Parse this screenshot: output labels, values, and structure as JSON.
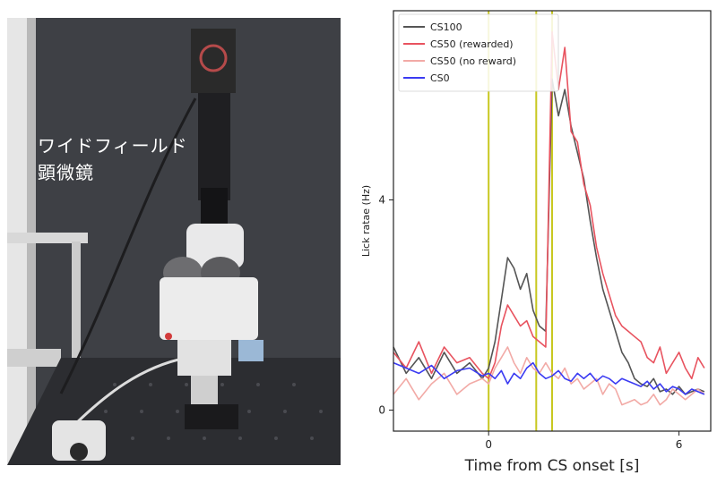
{
  "photo": {
    "caption": "ワイドフィールド\n顕微鏡"
  },
  "colors": {
    "CS100": "#555555",
    "CS50_rewarded": "#e8535f",
    "CS50_no_reward": "#f2aaa6",
    "CS0": "#3b3bf2",
    "event_line": "#c8c820"
  },
  "chart_data": {
    "type": "line",
    "xlabel": "Time from CS onset [s]",
    "ylabel": "Lick ratae (Hz)",
    "xlim": [
      -3,
      7
    ],
    "ylim": [
      -0.4,
      7.6
    ],
    "xticks": [
      0,
      6
    ],
    "yticks": [
      0,
      4
    ],
    "grid": false,
    "legend_position": "top-left",
    "vlines": [
      0,
      1.5,
      2
    ],
    "series": [
      {
        "name": "CS100",
        "color": "#555555",
        "x": [
          -3,
          -2.6,
          -2.2,
          -1.8,
          -1.4,
          -1.0,
          -0.6,
          -0.2,
          0,
          0.2,
          0.4,
          0.6,
          0.8,
          1.0,
          1.2,
          1.4,
          1.6,
          1.8,
          2.0,
          2.2,
          2.4,
          2.6,
          2.8,
          3.0,
          3.2,
          3.4,
          3.6,
          3.8,
          4.0,
          4.2,
          4.4,
          4.6,
          4.8,
          5.0,
          5.2,
          5.4,
          5.6,
          5.8,
          6.0,
          6.2,
          6.4,
          6.6,
          6.8
        ],
        "values": [
          1.2,
          0.7,
          1.0,
          0.6,
          1.1,
          0.7,
          0.9,
          0.6,
          0.8,
          1.3,
          2.1,
          2.9,
          2.7,
          2.3,
          2.6,
          1.9,
          1.6,
          1.5,
          6.3,
          5.6,
          6.1,
          5.4,
          4.9,
          4.4,
          3.6,
          2.9,
          2.3,
          1.9,
          1.5,
          1.1,
          0.9,
          0.6,
          0.5,
          0.45,
          0.6,
          0.35,
          0.4,
          0.3,
          0.45,
          0.3,
          0.35,
          0.4,
          0.35
        ]
      },
      {
        "name": "CS50 (rewarded)",
        "color": "#e8535f",
        "x": [
          -3,
          -2.6,
          -2.2,
          -1.8,
          -1.4,
          -1.0,
          -0.6,
          -0.2,
          0,
          0.2,
          0.4,
          0.6,
          0.8,
          1.0,
          1.2,
          1.4,
          1.6,
          1.8,
          2.0,
          2.2,
          2.4,
          2.6,
          2.8,
          3.0,
          3.2,
          3.4,
          3.6,
          3.8,
          4.0,
          4.2,
          4.4,
          4.6,
          4.8,
          5.0,
          5.2,
          5.4,
          5.6,
          5.8,
          6.0,
          6.2,
          6.4,
          6.6,
          6.8
        ],
        "values": [
          1.1,
          0.8,
          1.3,
          0.7,
          1.2,
          0.9,
          1.0,
          0.7,
          0.6,
          0.9,
          1.6,
          2.0,
          1.8,
          1.6,
          1.7,
          1.4,
          1.3,
          1.2,
          7.2,
          6.1,
          6.9,
          5.3,
          5.1,
          4.3,
          3.9,
          3.1,
          2.6,
          2.2,
          1.8,
          1.6,
          1.5,
          1.4,
          1.3,
          1.0,
          0.9,
          1.2,
          0.7,
          0.9,
          1.1,
          0.8,
          0.6,
          1.0,
          0.8
        ]
      },
      {
        "name": "CS50 (no reward)",
        "color": "#f2aaa6",
        "x": [
          -3,
          -2.6,
          -2.2,
          -1.8,
          -1.4,
          -1.0,
          -0.6,
          -0.2,
          0,
          0.2,
          0.4,
          0.6,
          0.8,
          1.0,
          1.2,
          1.4,
          1.6,
          1.8,
          2.0,
          2.2,
          2.4,
          2.6,
          2.8,
          3.0,
          3.2,
          3.4,
          3.6,
          3.8,
          4.0,
          4.2,
          4.4,
          4.6,
          4.8,
          5.0,
          5.2,
          5.4,
          5.6,
          5.8,
          6.0,
          6.2,
          6.4,
          6.6,
          6.8
        ],
        "values": [
          0.3,
          0.6,
          0.2,
          0.5,
          0.7,
          0.3,
          0.5,
          0.6,
          0.5,
          0.8,
          1.0,
          1.2,
          0.9,
          0.7,
          1.0,
          0.8,
          0.7,
          0.9,
          0.7,
          0.6,
          0.8,
          0.5,
          0.6,
          0.4,
          0.5,
          0.6,
          0.3,
          0.5,
          0.4,
          0.1,
          0.15,
          0.2,
          0.1,
          0.15,
          0.3,
          0.1,
          0.2,
          0.4,
          0.3,
          0.2,
          0.3,
          0.4,
          0.3
        ]
      },
      {
        "name": "CS0",
        "color": "#3b3bf2",
        "x": [
          -3,
          -2.6,
          -2.2,
          -1.8,
          -1.4,
          -1.0,
          -0.6,
          -0.2,
          0,
          0.2,
          0.4,
          0.6,
          0.8,
          1.0,
          1.2,
          1.4,
          1.6,
          1.8,
          2.0,
          2.2,
          2.4,
          2.6,
          2.8,
          3.0,
          3.2,
          3.4,
          3.6,
          3.8,
          4.0,
          4.2,
          4.4,
          4.6,
          4.8,
          5.0,
          5.2,
          5.4,
          5.6,
          5.8,
          6.0,
          6.2,
          6.4,
          6.6,
          6.8
        ],
        "values": [
          0.9,
          0.8,
          0.7,
          0.85,
          0.6,
          0.75,
          0.8,
          0.65,
          0.7,
          0.6,
          0.75,
          0.5,
          0.7,
          0.6,
          0.8,
          0.9,
          0.7,
          0.6,
          0.65,
          0.75,
          0.6,
          0.55,
          0.7,
          0.6,
          0.7,
          0.55,
          0.65,
          0.6,
          0.5,
          0.6,
          0.55,
          0.5,
          0.45,
          0.55,
          0.4,
          0.5,
          0.35,
          0.45,
          0.4,
          0.3,
          0.4,
          0.35,
          0.3
        ]
      }
    ]
  }
}
